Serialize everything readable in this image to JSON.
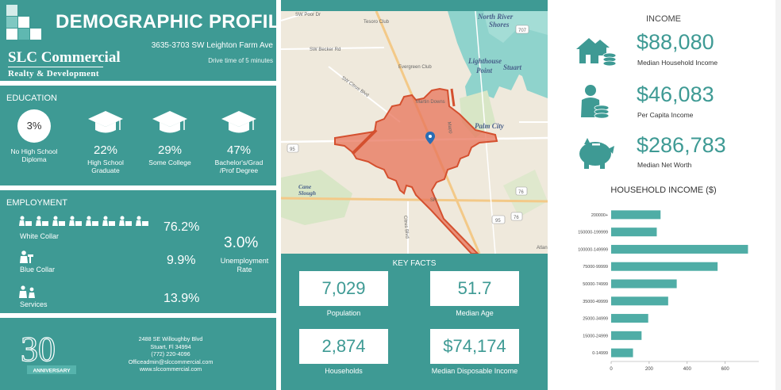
{
  "header": {
    "title": "DEMOGRAPHIC PROFILE",
    "address": "3635-3703 SW Leighton Farm Ave",
    "drive_time": "Drive time of 5 minutes",
    "logo_name": "SLC Commercial",
    "logo_sub": "Realty & Development"
  },
  "education": {
    "label": "EDUCATION",
    "items": [
      {
        "pct": "3%",
        "label": "No High School Diploma"
      },
      {
        "pct": "22%",
        "label": "High School Graduate"
      },
      {
        "pct": "29%",
        "label": "Some College"
      },
      {
        "pct": "47%",
        "label": "Bachelor's/Grad /Prof Degree"
      }
    ]
  },
  "employment": {
    "label": "EMPLOYMENT",
    "rows": [
      {
        "label": "White Collar",
        "value": "76.2%"
      },
      {
        "label": "Blue Collar",
        "value": "9.9%"
      },
      {
        "label": "Services",
        "value": "13.9%"
      }
    ],
    "unemployment_value": "3.0%",
    "unemployment_label": "Unemployment Rate"
  },
  "footer": {
    "anniversary_number": "30",
    "anniversary_label": "ANNIVERSARY",
    "contact": [
      "2488 SE Willoughby Blvd",
      "Stuart, Fl 34994",
      "(772) 220-4096",
      "Officeadmin@slccommercial.com",
      "www.slccommercial.com"
    ]
  },
  "map": {
    "labels": {
      "north_river": "North River",
      "shores": "Shores",
      "lighthouse": "Lighthouse",
      "point": "Point",
      "stuart": "Stuart",
      "palm_city": "Palm City",
      "martin_downs": "Martin Downs",
      "tesoro": "Tesoro Club",
      "sw_poor": "SW Poor Dr",
      "sw_becker": "SW Becker Rd",
      "evergreen": "Evergreen Club",
      "sw_citrus": "SW Citrus Blvd",
      "cane": "Cane",
      "slough": "Slough",
      "sr": "SR",
      "citrus_blvd": "Citrus Blvd",
      "atlan": "Atlan",
      "mapp": "Mapp",
      "r95a": "95",
      "r95b": "95",
      "r76a": "76",
      "r76b": "76",
      "r707": "707"
    }
  },
  "key_facts": {
    "title": "KEY FACTS",
    "items": [
      {
        "value": "7,029",
        "label": "Population"
      },
      {
        "value": "51.7",
        "label": "Median Age"
      },
      {
        "value": "2,874",
        "label": "Households"
      },
      {
        "value": "$74,174",
        "label": "Median Disposable Income"
      }
    ]
  },
  "income": {
    "title": "INCOME",
    "items": [
      {
        "value": "$88,080",
        "label": "Median Household Income",
        "icon": "house-coins-icon"
      },
      {
        "value": "$46,083",
        "label": "Per Capita Income",
        "icon": "person-coins-icon"
      },
      {
        "value": "$286,783",
        "label": "Median Net Worth",
        "icon": "piggy-bank-icon"
      }
    ]
  },
  "colors": {
    "accent": "#3e9a94",
    "bar": "#4fada6",
    "drive_area": "#e8735a"
  },
  "chart_data": {
    "type": "bar",
    "orientation": "horizontal",
    "title": "HOUSEHOLD INCOME ($)",
    "categories": [
      "200000+",
      "150000-199999",
      "100000-149999",
      "75000-99999",
      "50000-74999",
      "35000-49999",
      "25000-34999",
      "15000-24999",
      "0-14999"
    ],
    "values": [
      260,
      240,
      720,
      560,
      345,
      300,
      195,
      160,
      115
    ],
    "xticks": [
      "0",
      "200",
      "400",
      "600"
    ],
    "xlim": [
      0,
      760
    ]
  }
}
